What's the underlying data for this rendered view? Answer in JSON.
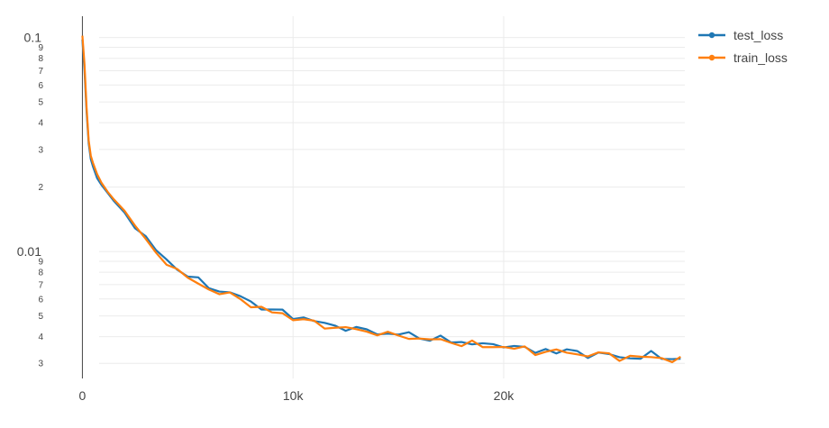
{
  "chart_data": {
    "type": "line",
    "title": "",
    "xlabel": "",
    "ylabel": "",
    "yscale": "log",
    "xlim": [
      -2200,
      28600
    ],
    "ylim": [
      0.00255,
      0.112
    ],
    "grid": true,
    "legend_position": "top-right",
    "x_ticks": [
      {
        "value": 0,
        "label": "0"
      },
      {
        "value": 10000,
        "label": "10k"
      },
      {
        "value": 20000,
        "label": "20k"
      }
    ],
    "y_major_ticks": [
      {
        "value": 0.1,
        "label": "0.1"
      },
      {
        "value": 0.01,
        "label": "0.01"
      }
    ],
    "y_minor_ticks": [
      {
        "value": 0.09,
        "label": "9"
      },
      {
        "value": 0.08,
        "label": "8"
      },
      {
        "value": 0.07,
        "label": "7"
      },
      {
        "value": 0.06,
        "label": "6"
      },
      {
        "value": 0.05,
        "label": "5"
      },
      {
        "value": 0.04,
        "label": "4"
      },
      {
        "value": 0.03,
        "label": "3"
      },
      {
        "value": 0.02,
        "label": "2"
      },
      {
        "value": 0.009,
        "label": "9"
      },
      {
        "value": 0.008,
        "label": "8"
      },
      {
        "value": 0.007,
        "label": "7"
      },
      {
        "value": 0.006,
        "label": "6"
      },
      {
        "value": 0.005,
        "label": "5"
      },
      {
        "value": 0.004,
        "label": "4"
      },
      {
        "value": 0.003,
        "label": "3"
      }
    ],
    "x": [
      0,
      100,
      200,
      300,
      400,
      500,
      700,
      900,
      1200,
      1500,
      2000,
      2500,
      3000,
      3500,
      4000,
      4500,
      5000,
      5500,
      6000,
      6500,
      7000,
      7500,
      8000,
      8500,
      9000,
      9500,
      10000,
      10500,
      11000,
      11500,
      12000,
      12500,
      13000,
      13500,
      14000,
      14500,
      15000,
      15500,
      16000,
      16500,
      17000,
      17500,
      18000,
      18500,
      19000,
      19500,
      20000,
      20500,
      21000,
      21500,
      22000,
      22500,
      23000,
      23500,
      24000,
      24500,
      25000,
      25500,
      26000,
      26500,
      27000,
      27500,
      28000,
      28400
    ],
    "series": [
      {
        "name": "test_loss",
        "color": "#1f77b4",
        "values": [
          0.098,
          0.07,
          0.045,
          0.032,
          0.027,
          0.025,
          0.022,
          0.0205,
          0.0188,
          0.0172,
          0.0152,
          0.0133,
          0.0115,
          0.0101,
          0.0092,
          0.0083,
          0.0077,
          0.0073,
          0.0069,
          0.0066,
          0.0063,
          0.0062,
          0.0058,
          0.0055,
          0.0053,
          0.0052,
          0.005,
          0.0049,
          0.0047,
          0.0046,
          0.0045,
          0.0044,
          0.0043,
          0.0043,
          0.0042,
          0.0041,
          0.0041,
          0.0041,
          0.004,
          0.0039,
          0.0039,
          0.0038,
          0.0038,
          0.0037,
          0.0037,
          0.0036,
          0.0037,
          0.0036,
          0.0035,
          0.0034,
          0.0035,
          0.0034,
          0.0034,
          0.0034,
          0.0033,
          0.0033,
          0.0033,
          0.0032,
          0.0032,
          0.0032,
          0.0033,
          0.0032,
          0.0032,
          0.0031
        ]
      },
      {
        "name": "train_loss",
        "color": "#ff7f0e",
        "values": [
          0.102,
          0.075,
          0.047,
          0.033,
          0.028,
          0.026,
          0.023,
          0.021,
          0.019,
          0.0175,
          0.0155,
          0.0134,
          0.0112,
          0.0098,
          0.009,
          0.0081,
          0.0075,
          0.0071,
          0.0067,
          0.0064,
          0.0062,
          0.0061,
          0.0056,
          0.0054,
          0.0052,
          0.0051,
          0.0049,
          0.0048,
          0.0046,
          0.0045,
          0.0044,
          0.0044,
          0.0043,
          0.0042,
          0.0042,
          0.0041,
          0.004,
          0.004,
          0.0039,
          0.0039,
          0.0038,
          0.0038,
          0.0037,
          0.0037,
          0.0036,
          0.0036,
          0.0036,
          0.0035,
          0.0035,
          0.0034,
          0.0034,
          0.0034,
          0.0034,
          0.0033,
          0.0033,
          0.0033,
          0.0033,
          0.0032,
          0.0032,
          0.0032,
          0.0032,
          0.0032,
          0.0031,
          0.0031
        ]
      }
    ]
  }
}
